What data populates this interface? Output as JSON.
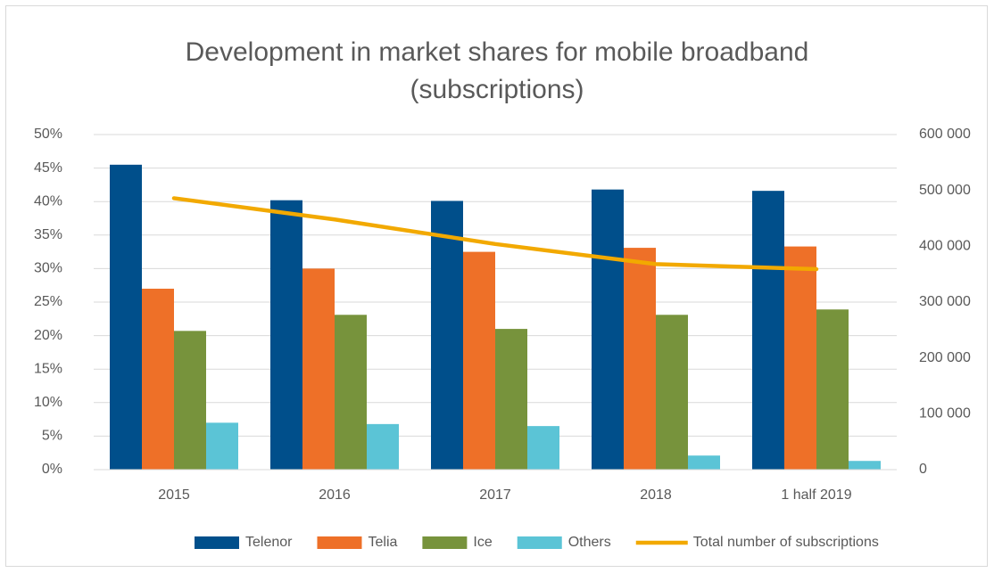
{
  "chart_data": {
    "type": "bar",
    "title": "Development in market shares for mobile broadband (subscriptions)",
    "categories": [
      "2015",
      "2016",
      "2017",
      "2018",
      "1 half 2019"
    ],
    "series": [
      {
        "name": "Telenor",
        "color": "#004f8b",
        "values": [
          45.5,
          40.2,
          40.1,
          41.8,
          41.6
        ]
      },
      {
        "name": "Telia",
        "color": "#ee7028",
        "values": [
          27,
          30,
          32.5,
          33.1,
          33.3
        ]
      },
      {
        "name": "Ice",
        "color": "#77933c",
        "values": [
          20.7,
          23.1,
          21,
          23.1,
          23.9
        ]
      },
      {
        "name": "Others",
        "color": "#5bc4d6",
        "values": [
          7,
          6.8,
          6.5,
          2.1,
          1.3
        ]
      },
      {
        "name": "Total number of subscriptions",
        "color": "#f2a900",
        "type": "line",
        "axis": "y2",
        "values": [
          486000,
          448000,
          404000,
          368000,
          359000
        ]
      }
    ],
    "ylim": [
      0,
      50
    ],
    "yticks": [
      {
        "value": 0,
        "label": "0%"
      },
      {
        "value": 5,
        "label": "5%"
      },
      {
        "value": 10,
        "label": "10%"
      },
      {
        "value": 15,
        "label": "15%"
      },
      {
        "value": 20,
        "label": "20%"
      },
      {
        "value": 25,
        "label": "25%"
      },
      {
        "value": 30,
        "label": "30%"
      },
      {
        "value": 35,
        "label": "35%"
      },
      {
        "value": 40,
        "label": "40%"
      },
      {
        "value": 45,
        "label": "45%"
      },
      {
        "value": 50,
        "label": "50%"
      }
    ],
    "y2lim": [
      0,
      600000
    ],
    "y2ticks": [
      0,
      {
        "value": 100000,
        "label": "100 000"
      },
      {
        "value": 200000,
        "label": "200 000"
      },
      {
        "value": 300000,
        "label": "300 000"
      },
      {
        "value": 400000,
        "label": "400 000"
      },
      {
        "value": 500000,
        "label": "500 000"
      },
      {
        "value": 600000,
        "label": "600 000"
      }
    ],
    "grid": true,
    "legend": "bottom"
  }
}
